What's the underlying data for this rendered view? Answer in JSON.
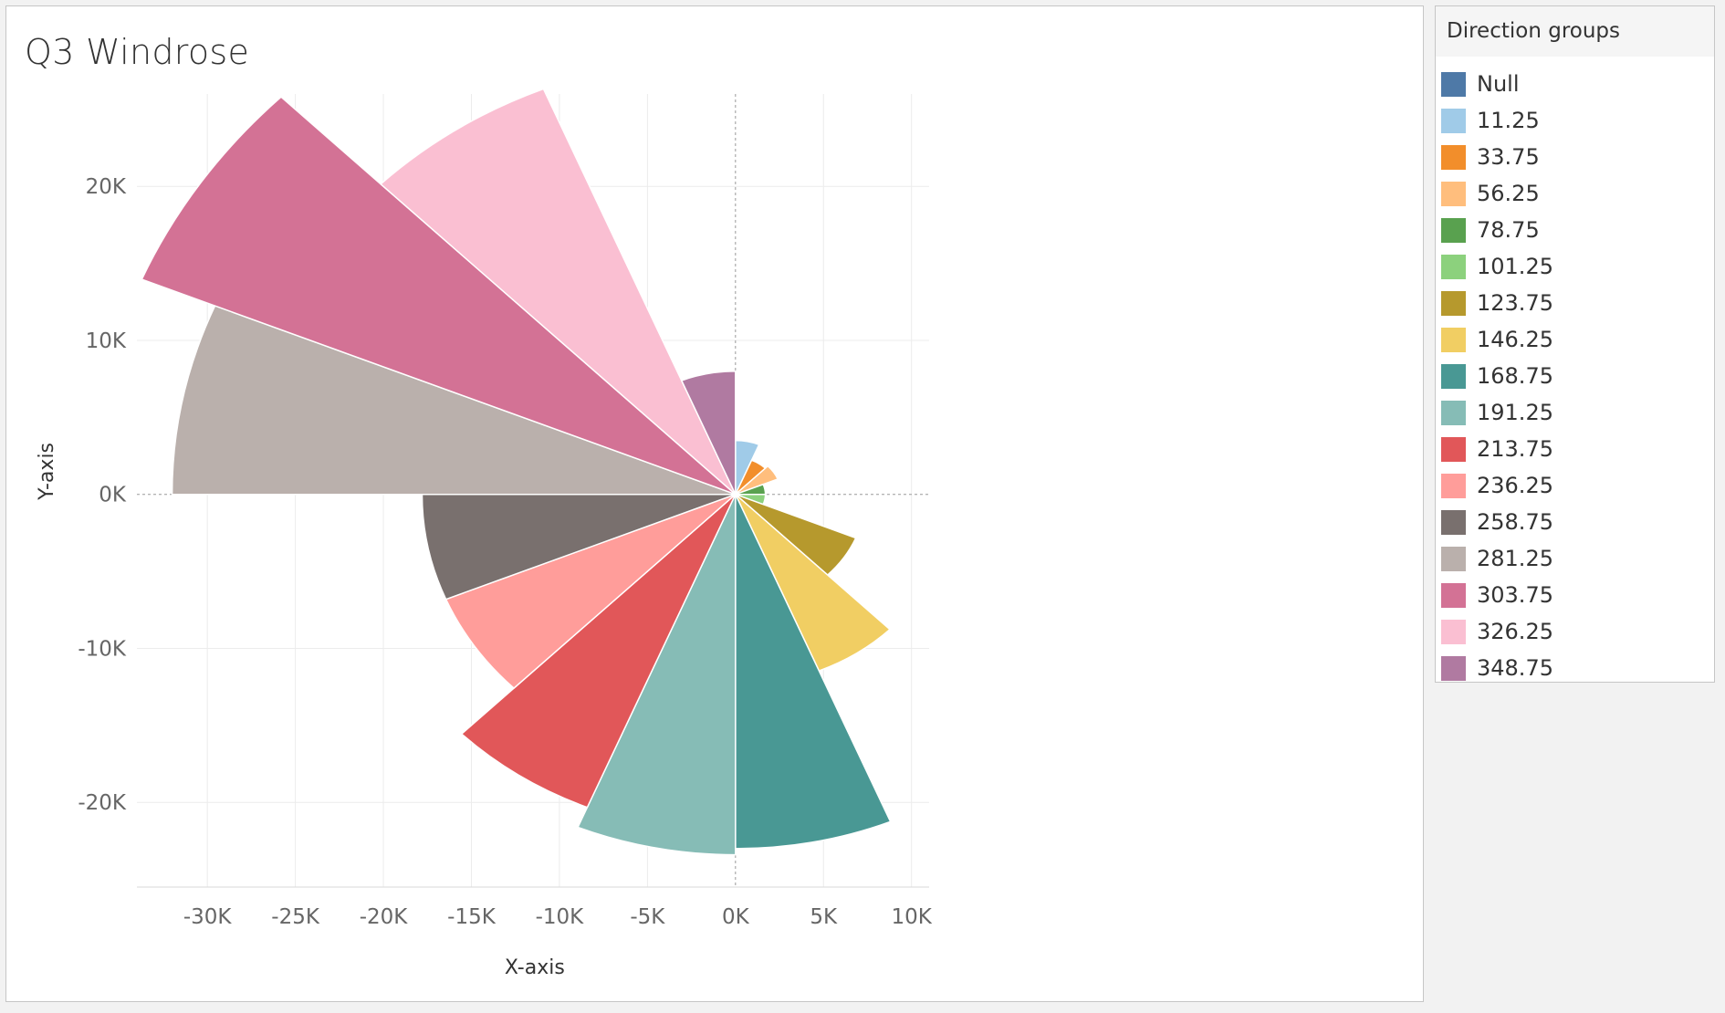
{
  "chart_data": {
    "type": "windrose",
    "title": "Q3 Windrose",
    "xlabel": "X-axis",
    "ylabel": "Y-axis",
    "xlim": [
      -34000,
      11000
    ],
    "ylim": [
      -25500,
      26000
    ],
    "x_ticks": [
      -30000,
      -25000,
      -20000,
      -15000,
      -10000,
      -5000,
      0,
      5000,
      10000
    ],
    "x_tick_labels": [
      "-30K",
      "-25K",
      "-20K",
      "-15K",
      "-10K",
      "-5K",
      "0K",
      "5K",
      "10K"
    ],
    "y_ticks": [
      20000,
      10000,
      0,
      -10000,
      -20000
    ],
    "y_tick_labels": [
      "20K",
      "10K",
      "0K",
      "-10K",
      "-20K"
    ],
    "grid": true,
    "legend_title": "Direction groups",
    "legend_position": "right",
    "sector_width_deg": 22.5,
    "series": [
      {
        "name": "Null",
        "direction": null,
        "value": 0,
        "color": "#4e79a7"
      },
      {
        "name": "11.25",
        "direction": 11.25,
        "value": 3500,
        "color": "#a0cbe8"
      },
      {
        "name": "33.75",
        "direction": 33.75,
        "value": 2400,
        "color": "#f28e2b"
      },
      {
        "name": "56.25",
        "direction": 56.25,
        "value": 2600,
        "color": "#ffbe7d"
      },
      {
        "name": "78.75",
        "direction": 78.75,
        "value": 1700,
        "color": "#59a14f"
      },
      {
        "name": "101.25",
        "direction": 101.25,
        "value": 1700,
        "color": "#8cd17d"
      },
      {
        "name": "123.75",
        "direction": 123.75,
        "value": 7400,
        "color": "#b6992d"
      },
      {
        "name": "146.25",
        "direction": 146.25,
        "value": 12400,
        "color": "#f1ce63"
      },
      {
        "name": "168.75",
        "direction": 168.75,
        "value": 23000,
        "color": "#499894"
      },
      {
        "name": "191.25",
        "direction": 191.25,
        "value": 23400,
        "color": "#86bcb6"
      },
      {
        "name": "213.75",
        "direction": 213.75,
        "value": 22000,
        "color": "#e15759"
      },
      {
        "name": "236.25",
        "direction": 236.25,
        "value": 17800,
        "color": "#ff9d9a"
      },
      {
        "name": "258.75",
        "direction": 258.75,
        "value": 17800,
        "color": "#79706e"
      },
      {
        "name": "281.25",
        "direction": 281.25,
        "value": 32000,
        "color": "#bab0ac"
      },
      {
        "name": "303.75",
        "direction": 303.75,
        "value": 36500,
        "color": "#d37295"
      },
      {
        "name": "326.25",
        "direction": 326.25,
        "value": 28500,
        "color": "#fabfd2"
      },
      {
        "name": "348.75",
        "direction": 348.75,
        "value": 8000,
        "color": "#b07aa1"
      }
    ]
  }
}
